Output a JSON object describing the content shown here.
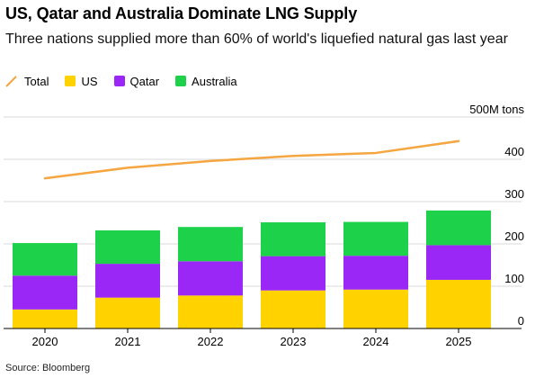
{
  "title": "US, Qatar and Australia Dominate LNG Supply",
  "subtitle": "Three nations supplied more than 60% of world's liquefied natural gas last year",
  "source": "Source: Bloomberg",
  "legend": {
    "total": "Total",
    "us": "US",
    "qatar": "Qatar",
    "australia": "Australia"
  },
  "colors": {
    "total": "#f5a640",
    "us": "#ffd200",
    "qatar": "#9a27f5",
    "australia": "#1ed14a",
    "gridline": "#d9d9d9",
    "baseline": "#000000"
  },
  "chart_data": {
    "type": "bar",
    "stacked": true,
    "categories": [
      "2020",
      "2021",
      "2022",
      "2023",
      "2024",
      "2025"
    ],
    "series": [
      {
        "name": "US",
        "values": [
          45,
          73,
          78,
          90,
          92,
          115
        ]
      },
      {
        "name": "Qatar",
        "values": [
          80,
          80,
          81,
          81,
          80,
          82
        ]
      },
      {
        "name": "Australia",
        "values": [
          77,
          79,
          81,
          80,
          80,
          82
        ]
      }
    ],
    "line_series": {
      "name": "Total",
      "values": [
        355,
        380,
        396,
        408,
        415,
        443
      ]
    },
    "y_unit_label": "500M tons",
    "yticks": [
      0,
      100,
      200,
      300,
      400
    ],
    "ylim": [
      0,
      500
    ],
    "grid": true,
    "legend_position": "top-left"
  }
}
